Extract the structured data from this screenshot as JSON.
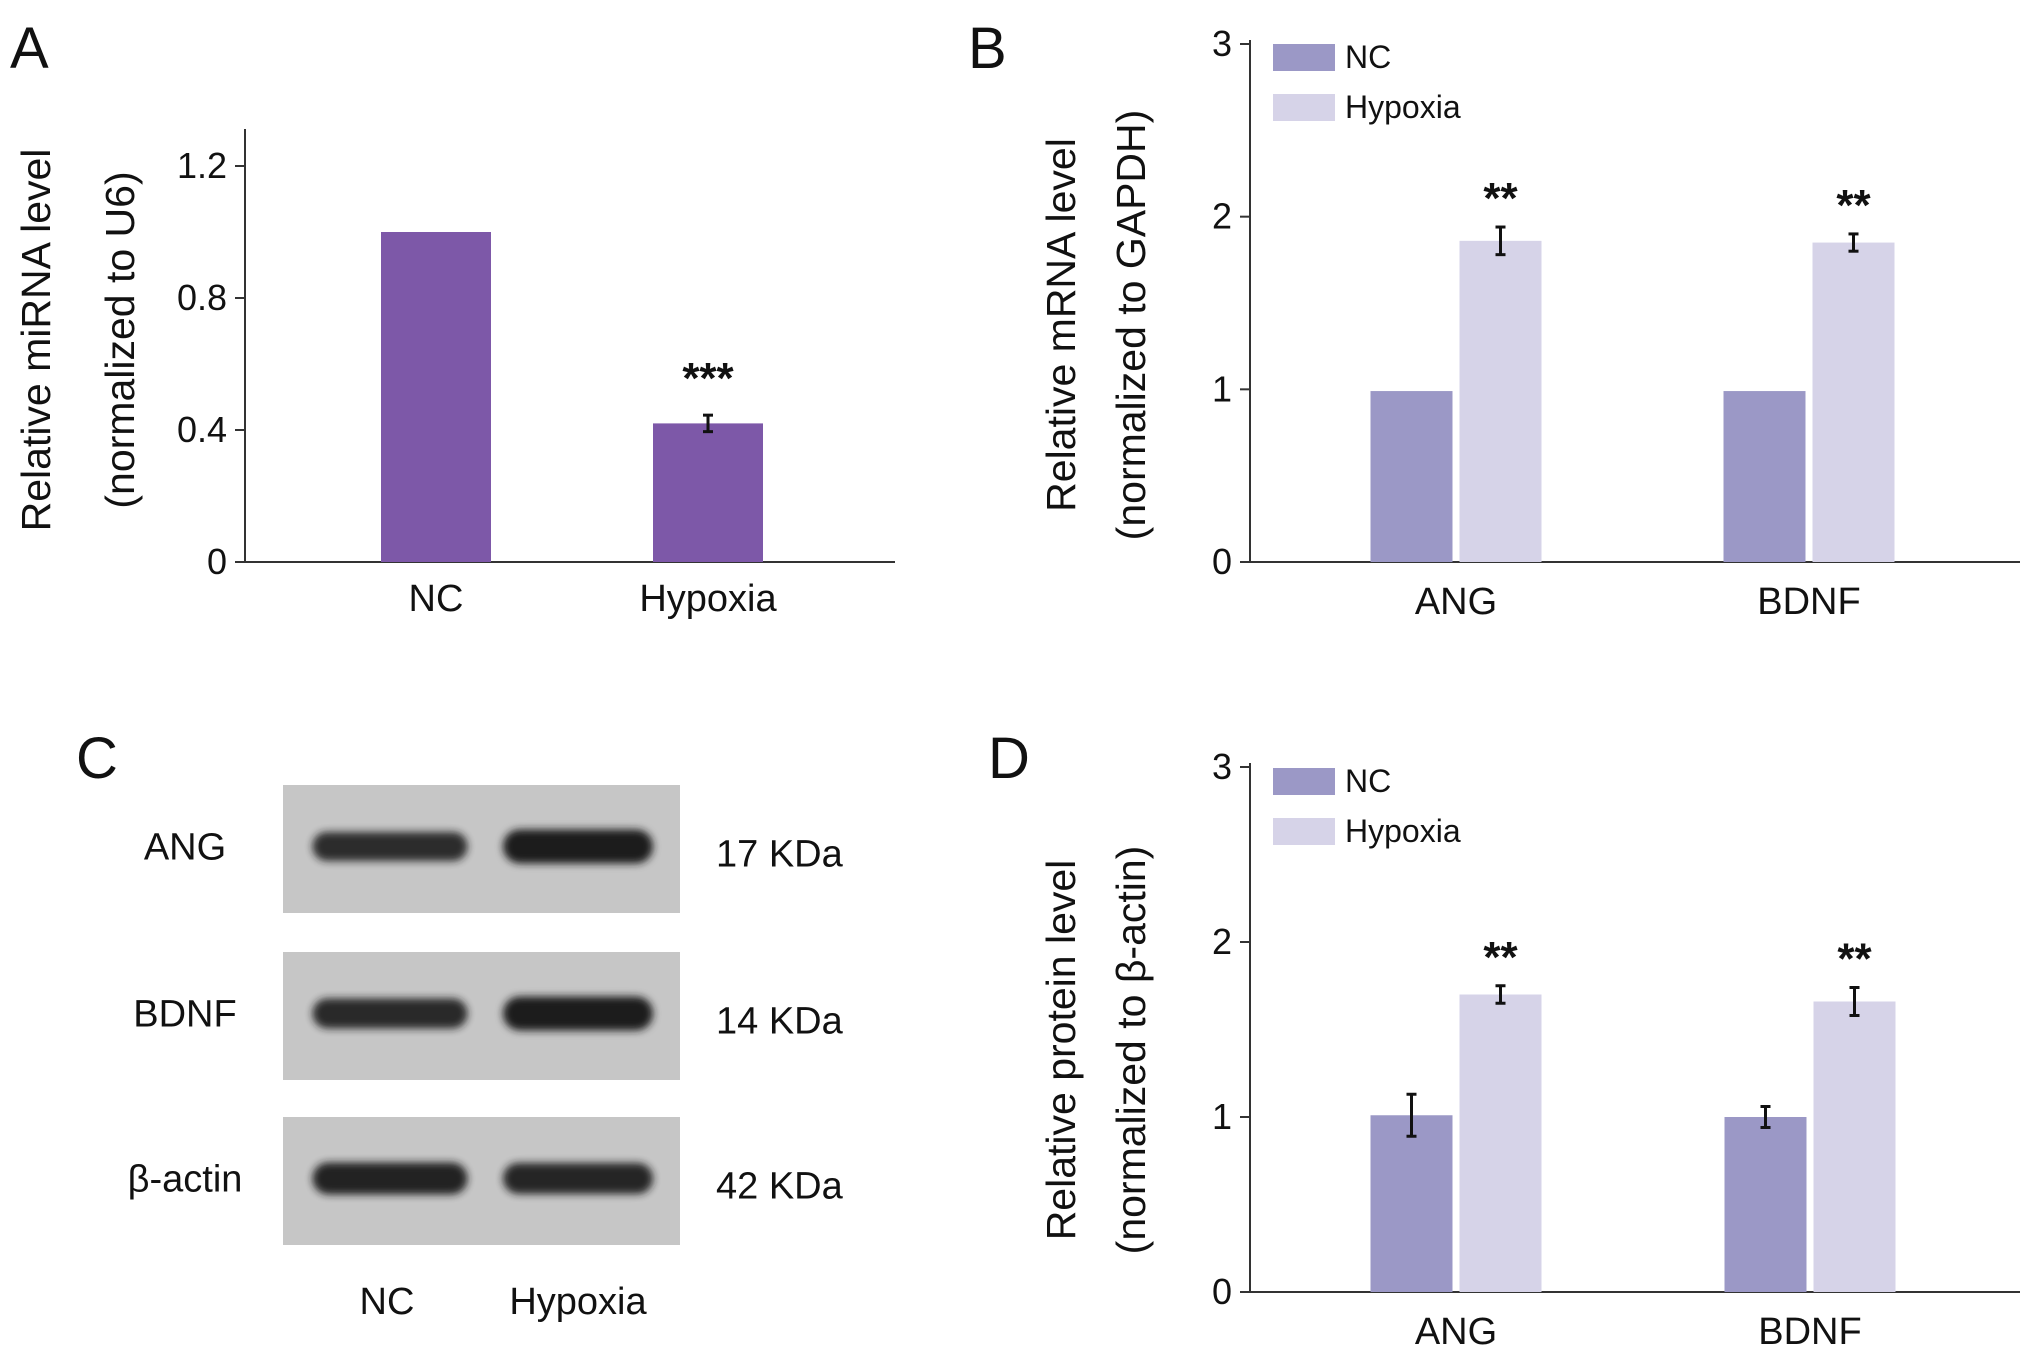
{
  "panels": [
    {
      "id": "A",
      "letter": "A"
    },
    {
      "id": "B",
      "letter": "B"
    },
    {
      "id": "C",
      "letter": "C"
    },
    {
      "id": "D",
      "letter": "D"
    }
  ],
  "colors": {
    "panelA_bar": "#7d58a8",
    "nc": "#9b98c6",
    "hypoxia": "#d6d3e8",
    "blot_bg": "#c6c6c6",
    "band": "#1e1e1e"
  },
  "chart_data": [
    {
      "id": "A",
      "type": "bar",
      "categories": [
        "NC",
        "Hypoxia"
      ],
      "values": [
        1.0,
        0.42
      ],
      "errors": [
        0,
        0.025
      ],
      "significance": [
        "",
        "***"
      ],
      "ylabel": [
        "Relative miRNA level",
        "(normalized to U6)"
      ],
      "ylim": [
        0,
        1.3
      ],
      "yticks": [
        0,
        0.4,
        0.8,
        1.2
      ],
      "ytick_labels": [
        "0",
        "0.4",
        "0.8",
        "1.2"
      ]
    },
    {
      "id": "B",
      "type": "bar",
      "categories": [
        "ANG",
        "BDNF"
      ],
      "series": [
        {
          "name": "NC",
          "values": [
            0.99,
            0.99
          ],
          "errors": [
            0,
            0
          ]
        },
        {
          "name": "Hypoxia",
          "values": [
            1.86,
            1.85
          ],
          "errors": [
            0.08,
            0.05
          ]
        }
      ],
      "significance": [
        "**",
        "**"
      ],
      "ylabel": [
        "Relative mRNA level",
        "(normalized to GAPDH)"
      ],
      "ylim": [
        0,
        3
      ],
      "yticks": [
        0,
        1,
        2,
        3
      ],
      "ytick_labels": [
        "0",
        "1",
        "2",
        "3"
      ],
      "legend": "top-left"
    },
    {
      "id": "D",
      "type": "bar",
      "categories": [
        "ANG",
        "BDNF"
      ],
      "series": [
        {
          "name": "NC",
          "values": [
            1.01,
            1.0
          ],
          "errors": [
            0.12,
            0.06
          ]
        },
        {
          "name": "Hypoxia",
          "values": [
            1.7,
            1.66
          ],
          "errors": [
            0.05,
            0.08
          ]
        }
      ],
      "significance": [
        "**",
        "**"
      ],
      "ylabel": [
        "Relative protein level",
        "(normalized to β-actin)"
      ],
      "ylim": [
        0,
        3
      ],
      "yticks": [
        0,
        1,
        2,
        3
      ],
      "ytick_labels": [
        "0",
        "1",
        "2",
        "3"
      ],
      "legend": "top-left"
    }
  ],
  "blot": {
    "rows": [
      {
        "label": "ANG",
        "size": "17 KDa",
        "nc_band": 0.75,
        "hyp_band": 1.0
      },
      {
        "label": "BDNF",
        "size": "14 KDa",
        "nc_band": 0.8,
        "hyp_band": 1.0
      },
      {
        "label": "β-actin",
        "size": "42 KDa",
        "nc_band": 0.9,
        "hyp_band": 0.85
      }
    ],
    "lanes": [
      "NC",
      "Hypoxia"
    ]
  }
}
